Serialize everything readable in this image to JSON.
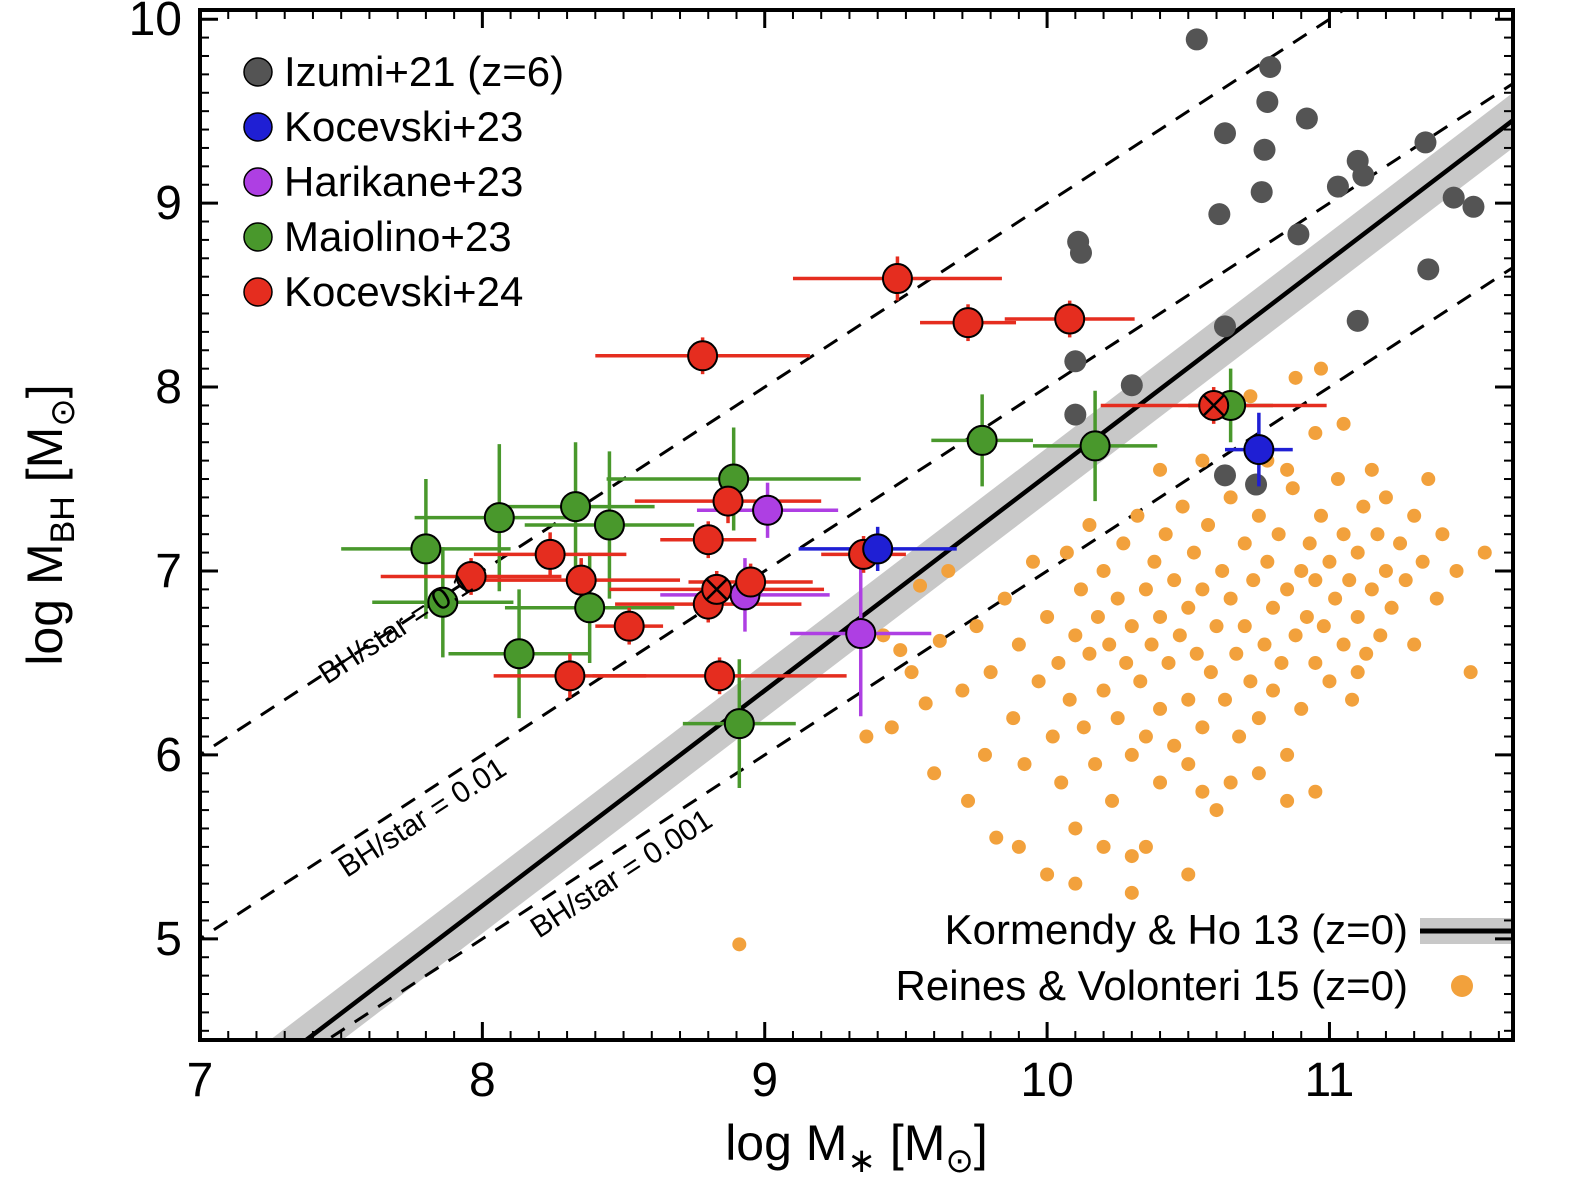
{
  "chart_data": {
    "type": "scatter",
    "title": "",
    "xlim": [
      7,
      11.65
    ],
    "ylim": [
      4.45,
      10.05
    ],
    "xticks": [
      7,
      8,
      9,
      10,
      11
    ],
    "yticks": [
      5,
      6,
      7,
      8,
      9,
      10
    ],
    "xlabel_segments": [
      {
        "t": "log  M"
      },
      {
        "t": "∗",
        "sub": true
      },
      {
        "t": " [M"
      },
      {
        "t": "⊙",
        "sub": true
      },
      {
        "t": "]"
      }
    ],
    "ylabel_segments": [
      {
        "t": "log  M"
      },
      {
        "t": "BH",
        "sub": true
      },
      {
        "t": "  [M"
      },
      {
        "t": "⊙",
        "sub": true
      },
      {
        "t": "]"
      }
    ],
    "ratio_lines": [
      {
        "label": "BH/star = 0.1",
        "offset": -1,
        "label_at": [
          7.45,
          6.38
        ]
      },
      {
        "label": "BH/star = 0.01",
        "offset": -2,
        "label_at": [
          7.52,
          5.33
        ]
      },
      {
        "label": "BH/star = 0.001",
        "offset": -3,
        "label_at": [
          8.2,
          5.0
        ]
      }
    ],
    "relation_line": {
      "label": "Kormendy & Ho 13 (z=0)",
      "slope": 1.17,
      "intercept_at_logM11": 8.69,
      "band_halfwidth": 0.15,
      "color": "#000000",
      "band_color": "#c8c8c8"
    },
    "series": [
      {
        "name": "Izumi+21 (z=6)",
        "color": "#545454",
        "marker": "circle",
        "radius": 11,
        "has_errors": false,
        "points": [
          [
            10.53,
            9.89
          ],
          [
            10.79,
            9.74
          ],
          [
            10.78,
            9.55
          ],
          [
            10.92,
            9.46
          ],
          [
            10.63,
            9.38
          ],
          [
            10.77,
            9.29
          ],
          [
            11.34,
            9.33
          ],
          [
            11.1,
            9.23
          ],
          [
            11.12,
            9.15
          ],
          [
            11.03,
            9.09
          ],
          [
            10.76,
            9.06
          ],
          [
            11.44,
            9.03
          ],
          [
            11.51,
            8.98
          ],
          [
            10.61,
            8.94
          ],
          [
            10.89,
            8.83
          ],
          [
            11.35,
            8.64
          ],
          [
            10.11,
            8.79
          ],
          [
            10.12,
            8.73
          ],
          [
            10.63,
            8.33
          ],
          [
            11.1,
            8.36
          ],
          [
            10.1,
            8.14
          ],
          [
            10.3,
            8.01
          ],
          [
            10.1,
            7.85
          ],
          [
            10.63,
            7.52
          ],
          [
            10.74,
            7.47
          ]
        ]
      },
      {
        "name": "Kocevski+23",
        "color": "#1f1fd4",
        "marker": "circle",
        "radius": 14.5,
        "has_errors": true,
        "points": [
          [
            9.4,
            7.12,
            0.28,
            0.12
          ],
          [
            10.75,
            7.66,
            0.12,
            0.2
          ]
        ]
      },
      {
        "name": "Harikane+23",
        "color": "#ae3fe3",
        "marker": "circle",
        "radius": 14.5,
        "has_errors": true,
        "points": [
          [
            9.01,
            7.33,
            0.25,
            0.15
          ],
          [
            8.93,
            6.87,
            0.3,
            0.2
          ],
          [
            9.34,
            6.66,
            0.25,
            0.45
          ]
        ]
      },
      {
        "name": "Maiolino+23",
        "color": "#49982c",
        "marker": "circle",
        "radius": 14.5,
        "has_errors": true,
        "points": [
          [
            7.8,
            7.12,
            0.3,
            0.38
          ],
          [
            7.86,
            6.83,
            0.25,
            0.3
          ],
          [
            8.06,
            7.29,
            0.3,
            0.4
          ],
          [
            8.13,
            6.55,
            0.25,
            0.35
          ],
          [
            8.33,
            7.35,
            0.28,
            0.35
          ],
          [
            8.38,
            6.8,
            0.3,
            0.3
          ],
          [
            8.45,
            7.25,
            0.3,
            0.4
          ],
          [
            8.89,
            7.5,
            0.45,
            0.28
          ],
          [
            8.91,
            6.17,
            0.2,
            0.35
          ],
          [
            9.77,
            7.71,
            0.18,
            0.25
          ],
          [
            10.17,
            7.68,
            0.22,
            0.3
          ],
          [
            10.65,
            7.9,
            0.15,
            0.2
          ]
        ]
      },
      {
        "name": "Kocevski+24",
        "color": "#e52d1f",
        "marker": "circle",
        "radius": 14.5,
        "has_errors": true,
        "points": [
          [
            8.78,
            8.17,
            0.38,
            0.1
          ],
          [
            9.47,
            8.59,
            0.37,
            0.12
          ],
          [
            9.72,
            8.35,
            0.17,
            0.1
          ],
          [
            10.08,
            8.37,
            0.23,
            0.1
          ],
          [
            8.87,
            7.38,
            0.33,
            0.12
          ],
          [
            8.8,
            7.17,
            0.17,
            0.1
          ],
          [
            8.24,
            7.09,
            0.27,
            0.12
          ],
          [
            7.96,
            6.97,
            0.32,
            0.1
          ],
          [
            8.35,
            6.95,
            0.35,
            0.12
          ],
          [
            8.52,
            6.7,
            0.12,
            0.1
          ],
          [
            8.8,
            6.82,
            0.33,
            0.1
          ],
          [
            8.95,
            6.94,
            0.22,
            0.1
          ],
          [
            8.84,
            6.43,
            0.45,
            0.1
          ],
          [
            8.31,
            6.43,
            0.27,
            0.12
          ],
          [
            9.35,
            7.09,
            0.15,
            0.1
          ],
          [
            10.59,
            7.9,
            0.4,
            0.1,
            1
          ],
          [
            8.83,
            6.9,
            0.38,
            0.1,
            1
          ]
        ]
      },
      {
        "name": "Reines & Volonteri 15 (z=0)",
        "color": "#f2a13c",
        "marker": "dot",
        "radius": 7,
        "has_errors": false,
        "points": [
          [
            8.91,
            4.97
          ],
          [
            9.36,
            6.1
          ],
          [
            9.42,
            6.65
          ],
          [
            9.45,
            6.15
          ],
          [
            9.48,
            6.57
          ],
          [
            9.52,
            6.45
          ],
          [
            9.55,
            6.92
          ],
          [
            9.57,
            6.28
          ],
          [
            9.6,
            5.9
          ],
          [
            9.62,
            6.62
          ],
          [
            9.65,
            7.0
          ],
          [
            9.7,
            6.35
          ],
          [
            9.72,
            5.75
          ],
          [
            9.75,
            6.7
          ],
          [
            9.78,
            6.0
          ],
          [
            9.8,
            6.45
          ],
          [
            9.82,
            5.55
          ],
          [
            9.85,
            6.85
          ],
          [
            9.88,
            6.2
          ],
          [
            9.9,
            6.6
          ],
          [
            9.9,
            5.5
          ],
          [
            9.92,
            5.95
          ],
          [
            9.95,
            7.05
          ],
          [
            9.97,
            6.4
          ],
          [
            10.0,
            6.75
          ],
          [
            10.0,
            5.35
          ],
          [
            10.02,
            6.1
          ],
          [
            10.04,
            6.5
          ],
          [
            10.05,
            5.85
          ],
          [
            10.07,
            7.1
          ],
          [
            10.08,
            6.3
          ],
          [
            10.1,
            6.65
          ],
          [
            10.1,
            5.6
          ],
          [
            10.1,
            5.3
          ],
          [
            10.12,
            6.9
          ],
          [
            10.13,
            6.15
          ],
          [
            10.15,
            6.55
          ],
          [
            10.15,
            7.25
          ],
          [
            10.17,
            5.95
          ],
          [
            10.18,
            6.75
          ],
          [
            10.2,
            6.35
          ],
          [
            10.2,
            7.0
          ],
          [
            10.2,
            5.5
          ],
          [
            10.22,
            6.6
          ],
          [
            10.23,
            5.75
          ],
          [
            10.25,
            6.85
          ],
          [
            10.25,
            6.2
          ],
          [
            10.27,
            7.15
          ],
          [
            10.28,
            6.5
          ],
          [
            10.3,
            6.0
          ],
          [
            10.3,
            6.7
          ],
          [
            10.3,
            5.45
          ],
          [
            10.3,
            5.25
          ],
          [
            10.32,
            7.3
          ],
          [
            10.33,
            6.4
          ],
          [
            10.35,
            6.9
          ],
          [
            10.35,
            6.1
          ],
          [
            10.35,
            5.5
          ],
          [
            10.37,
            6.6
          ],
          [
            10.38,
            7.05
          ],
          [
            10.4,
            6.25
          ],
          [
            10.4,
            6.75
          ],
          [
            10.4,
            5.85
          ],
          [
            10.4,
            7.55
          ],
          [
            10.42,
            7.2
          ],
          [
            10.43,
            6.5
          ],
          [
            10.45,
            6.95
          ],
          [
            10.45,
            6.05
          ],
          [
            10.47,
            6.65
          ],
          [
            10.48,
            7.35
          ],
          [
            10.5,
            6.3
          ],
          [
            10.5,
            6.8
          ],
          [
            10.5,
            5.95
          ],
          [
            10.5,
            5.35
          ],
          [
            10.52,
            7.1
          ],
          [
            10.53,
            6.55
          ],
          [
            10.55,
            6.9
          ],
          [
            10.55,
            6.15
          ],
          [
            10.55,
            7.6
          ],
          [
            10.55,
            5.8
          ],
          [
            10.57,
            7.25
          ],
          [
            10.58,
            6.45
          ],
          [
            10.6,
            6.7
          ],
          [
            10.6,
            5.7
          ],
          [
            10.6,
            7.9
          ],
          [
            10.62,
            7.0
          ],
          [
            10.63,
            6.3
          ],
          [
            10.65,
            6.85
          ],
          [
            10.65,
            7.4
          ],
          [
            10.65,
            5.85
          ],
          [
            10.67,
            6.55
          ],
          [
            10.68,
            6.1
          ],
          [
            10.7,
            7.15
          ],
          [
            10.7,
            6.7
          ],
          [
            10.72,
            6.4
          ],
          [
            10.72,
            7.95
          ],
          [
            10.73,
            6.95
          ],
          [
            10.75,
            7.3
          ],
          [
            10.75,
            6.2
          ],
          [
            10.75,
            5.9
          ],
          [
            10.77,
            6.6
          ],
          [
            10.78,
            7.05
          ],
          [
            10.78,
            7.6
          ],
          [
            10.8,
            6.8
          ],
          [
            10.8,
            6.35
          ],
          [
            10.82,
            7.2
          ],
          [
            10.83,
            6.5
          ],
          [
            10.85,
            6.9
          ],
          [
            10.85,
            6.0
          ],
          [
            10.85,
            7.55
          ],
          [
            10.85,
            5.75
          ],
          [
            10.87,
            7.45
          ],
          [
            10.88,
            6.65
          ],
          [
            10.88,
            8.05
          ],
          [
            10.9,
            7.0
          ],
          [
            10.9,
            6.25
          ],
          [
            10.92,
            6.75
          ],
          [
            10.93,
            7.15
          ],
          [
            10.95,
            6.5
          ],
          [
            10.95,
            6.95
          ],
          [
            10.95,
            7.75
          ],
          [
            10.95,
            5.8
          ],
          [
            10.97,
            7.3
          ],
          [
            10.97,
            8.1
          ],
          [
            10.98,
            6.7
          ],
          [
            11.0,
            6.4
          ],
          [
            11.0,
            7.05
          ],
          [
            11.02,
            6.85
          ],
          [
            11.03,
            7.5
          ],
          [
            11.05,
            6.6
          ],
          [
            11.05,
            7.2
          ],
          [
            11.05,
            7.8
          ],
          [
            11.07,
            6.95
          ],
          [
            11.08,
            6.3
          ],
          [
            11.1,
            7.1
          ],
          [
            11.1,
            6.75
          ],
          [
            11.1,
            6.45
          ],
          [
            11.12,
            7.35
          ],
          [
            11.13,
            6.55
          ],
          [
            11.15,
            6.9
          ],
          [
            11.15,
            7.55
          ],
          [
            11.17,
            7.2
          ],
          [
            11.18,
            6.65
          ],
          [
            11.2,
            7.0
          ],
          [
            11.2,
            7.4
          ],
          [
            11.22,
            6.8
          ],
          [
            11.25,
            7.15
          ],
          [
            11.27,
            6.95
          ],
          [
            11.3,
            7.3
          ],
          [
            11.3,
            6.6
          ],
          [
            11.33,
            7.05
          ],
          [
            11.35,
            7.5
          ],
          [
            11.38,
            6.85
          ],
          [
            11.4,
            7.2
          ],
          [
            11.45,
            7.0
          ],
          [
            11.5,
            6.45
          ],
          [
            11.55,
            7.1
          ]
        ]
      }
    ],
    "legend_topleft": {
      "entries": [
        "Izumi+21 (z=6)",
        "Kocevski+23",
        "Harikane+23",
        "Maiolino+23",
        "Kocevski+24"
      ]
    },
    "legend_bottomright": {
      "entries": [
        {
          "label": "Kormendy & Ho 13 (z=0)",
          "swatch": "line-band"
        },
        {
          "label": "Reines & Volonteri 15 (z=0)",
          "swatch": "dot"
        }
      ]
    }
  }
}
